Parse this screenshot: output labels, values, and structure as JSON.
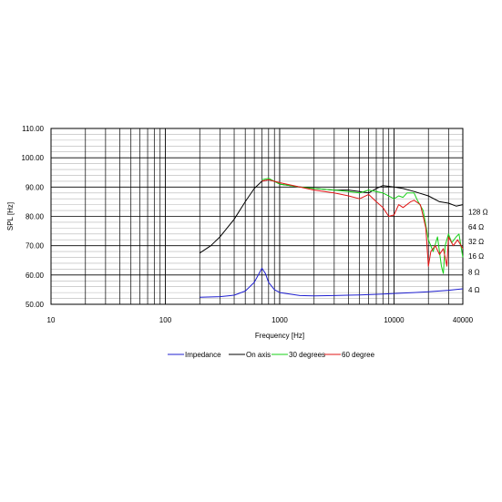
{
  "chart_data": {
    "type": "line",
    "title": "",
    "xlabel": "Frequency [Hz]",
    "ylabel": "SPL [Hz]",
    "xscale": "log",
    "xlim": [
      10,
      40000
    ],
    "ylim": [
      50,
      110
    ],
    "grid": true,
    "legend_position": "bottom",
    "y_ticks": [
      "110.00",
      "100.00",
      "90.00",
      "80.00",
      "70.00",
      "60.00",
      "50.00"
    ],
    "x_ticks": [
      "10",
      "100",
      "1000",
      "10000",
      "40000"
    ],
    "impedance_labels": [
      "128 Ω",
      "64 Ω",
      "32 Ω",
      "16 Ω",
      "8 Ω",
      "4 Ω"
    ],
    "series": [
      {
        "name": "Impedance",
        "color": "#1f1fd0",
        "points": [
          [
            200,
            52.4
          ],
          [
            300,
            52.6
          ],
          [
            400,
            53.1
          ],
          [
            500,
            54.5
          ],
          [
            600,
            57.5
          ],
          [
            700,
            62.3
          ],
          [
            750,
            60.5
          ],
          [
            800,
            57.5
          ],
          [
            900,
            55
          ],
          [
            1000,
            54
          ],
          [
            1500,
            53
          ],
          [
            2000,
            52.9
          ],
          [
            3000,
            53
          ],
          [
            5000,
            53.2
          ],
          [
            8000,
            53.5
          ],
          [
            10000,
            53.7
          ],
          [
            15000,
            54
          ],
          [
            20000,
            54.3
          ],
          [
            30000,
            54.8
          ],
          [
            40000,
            55.3
          ]
        ]
      },
      {
        "name": "On axis",
        "color": "#000000",
        "points": [
          [
            200,
            67.5
          ],
          [
            250,
            70
          ],
          [
            300,
            73
          ],
          [
            400,
            79
          ],
          [
            500,
            85
          ],
          [
            600,
            89.5
          ],
          [
            700,
            92
          ],
          [
            800,
            92.5
          ],
          [
            900,
            92
          ],
          [
            1000,
            91
          ],
          [
            1500,
            90
          ],
          [
            2000,
            89.5
          ],
          [
            3000,
            89
          ],
          [
            4000,
            89
          ],
          [
            5000,
            88.5
          ],
          [
            6000,
            88
          ],
          [
            7000,
            89.5
          ],
          [
            8000,
            90.5
          ],
          [
            10000,
            90
          ],
          [
            12000,
            89.5
          ],
          [
            15000,
            88.5
          ],
          [
            20000,
            87
          ],
          [
            25000,
            85
          ],
          [
            30000,
            84.5
          ],
          [
            35000,
            83.5
          ],
          [
            40000,
            84
          ]
        ]
      },
      {
        "name": "30 degrees",
        "color": "#17d017",
        "points": [
          [
            700,
            92.5
          ],
          [
            800,
            93
          ],
          [
            1000,
            91
          ],
          [
            1500,
            90
          ],
          [
            2000,
            89.5
          ],
          [
            3000,
            89
          ],
          [
            4000,
            88.5
          ],
          [
            5000,
            88
          ],
          [
            6000,
            89
          ],
          [
            7000,
            88.5
          ],
          [
            8000,
            88
          ],
          [
            10000,
            86
          ],
          [
            11000,
            87
          ],
          [
            12000,
            86.5
          ],
          [
            13000,
            88
          ],
          [
            15000,
            88
          ],
          [
            16000,
            85.5
          ],
          [
            18000,
            82
          ],
          [
            20000,
            72
          ],
          [
            22000,
            68
          ],
          [
            24000,
            73
          ],
          [
            26000,
            63
          ],
          [
            27000,
            60.5
          ],
          [
            28000,
            70
          ],
          [
            30000,
            74
          ],
          [
            32000,
            71
          ],
          [
            35000,
            73
          ],
          [
            37000,
            74
          ],
          [
            40000,
            66
          ]
        ]
      },
      {
        "name": "60 degree",
        "color": "#e01414",
        "points": [
          [
            700,
            92
          ],
          [
            800,
            92.5
          ],
          [
            1000,
            91.5
          ],
          [
            1500,
            90
          ],
          [
            2000,
            89
          ],
          [
            3000,
            88
          ],
          [
            4000,
            87
          ],
          [
            5000,
            86
          ],
          [
            6000,
            87.5
          ],
          [
            7000,
            85
          ],
          [
            8000,
            83
          ],
          [
            9000,
            80
          ],
          [
            10000,
            80.5
          ],
          [
            11000,
            84
          ],
          [
            12000,
            83
          ],
          [
            14000,
            85
          ],
          [
            15000,
            85.5
          ],
          [
            17000,
            84
          ],
          [
            18000,
            80
          ],
          [
            19000,
            76
          ],
          [
            20000,
            63
          ],
          [
            21000,
            68
          ],
          [
            23000,
            70
          ],
          [
            25000,
            67
          ],
          [
            27000,
            69
          ],
          [
            28000,
            66
          ],
          [
            29000,
            63
          ],
          [
            30000,
            73
          ],
          [
            33000,
            70
          ],
          [
            36000,
            72
          ],
          [
            40000,
            69
          ]
        ]
      }
    ]
  }
}
